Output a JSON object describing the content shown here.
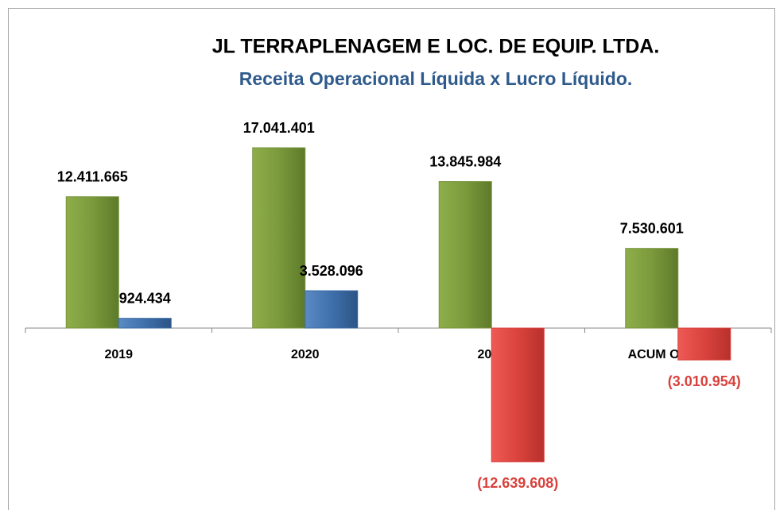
{
  "chart_data": {
    "type": "bar",
    "title": "JL TERRAPLENAGEM E LOC. DE EQUIP. LTDA.",
    "subtitle": "Receita Operacional Líquida x Lucro Líquido.",
    "categories": [
      "2019",
      "2020",
      "2021",
      "ACUM OUT/2022"
    ],
    "series": [
      {
        "color": "#77933c",
        "values": [
          12411665,
          17041401,
          13845984,
          7530601
        ],
        "value_labels": [
          "12.411.665",
          "17.041.401",
          "13.845.984",
          "7.530.601"
        ]
      },
      {
        "color": "#3a6ba5",
        "negative_color": "#d9413c",
        "values": [
          924434,
          3528096,
          -12639608,
          -3010954
        ],
        "value_labels": [
          "924.434",
          "3.528.096",
          "(12.639.608)",
          "(3.010.954)"
        ]
      }
    ]
  }
}
